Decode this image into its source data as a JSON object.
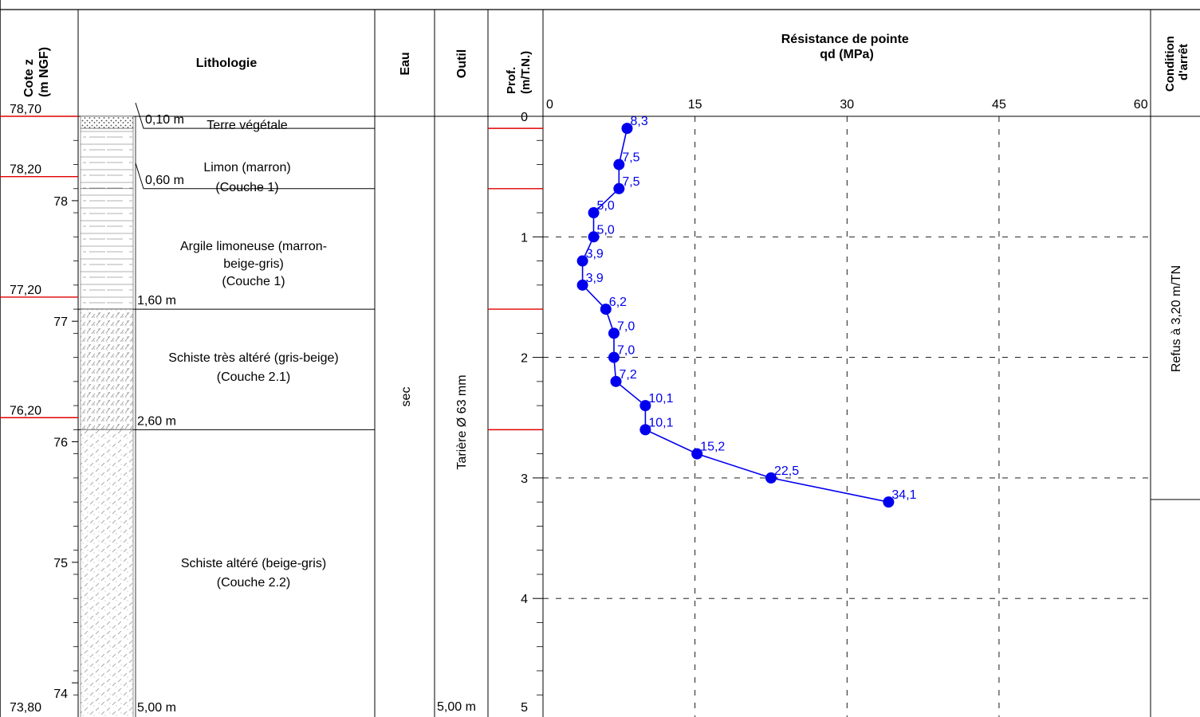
{
  "headers": {
    "cote_line1": "Cote z",
    "cote_line2": "(m NGF)",
    "lithologie": "Lithologie",
    "eau": "Eau",
    "outil": "Outil",
    "prof_line1": "Prof.",
    "prof_line2": "(m/T.N.)",
    "resistance_line1": "Résistance de pointe",
    "resistance_line2": "qd (MPa)",
    "condition_line1": "Condition",
    "condition_line2": "d'arrêt"
  },
  "elevation_labels": [
    "78,70",
    "78,20",
    "77,20",
    "76,20",
    "73,80"
  ],
  "elevation_ticks": [
    "78",
    "77",
    "76",
    "75",
    "74"
  ],
  "layers": [
    {
      "name": "Terre végétale",
      "desc": "",
      "bottom_label": "0,10 m",
      "pattern": "topsoil"
    },
    {
      "name": "Limon (marron)",
      "desc": "(Couche 1)",
      "bottom_label": "0,60 m",
      "pattern": "silt"
    },
    {
      "name": "Argile limoneuse (marron-",
      "name2": "beige-gris)",
      "desc": "(Couche 1)",
      "bottom_label": "1,60 m",
      "pattern": "silt"
    },
    {
      "name": "Schiste très altéré (gris-beige)",
      "desc": "(Couche 2.1)",
      "bottom_label": "2,60 m",
      "pattern": "schist_dense"
    },
    {
      "name": "Schiste altéré (beige-gris)",
      "desc": "(Couche 2.2)",
      "bottom_label": "5,00 m",
      "pattern": "schist"
    }
  ],
  "eau_value": "sec",
  "outil_value": "Tarière Ø 63 mm",
  "outil_end_label": "5,00 m",
  "depth_tick_labels": [
    "0",
    "1",
    "2",
    "3",
    "4",
    "5"
  ],
  "condition_text": "Refus à 3,20 m/TN",
  "colors": {
    "series": "#0000ee",
    "boundary": "#e00000",
    "grid": "#000000"
  },
  "chart_data": {
    "type": "line",
    "title": "Résistance de pointe",
    "xlabel": "qd (MPa)",
    "ylabel": "Prof. (m/T.N.)",
    "xlim": [
      0,
      60
    ],
    "ylim": [
      0,
      5
    ],
    "y_inverted": true,
    "x_ticks": [
      "0",
      "15",
      "30",
      "45",
      "60"
    ],
    "grid": true,
    "points": [
      {
        "depth": 0.1,
        "qd": 8.3,
        "label": "8,3"
      },
      {
        "depth": 0.4,
        "qd": 7.5,
        "label": "7,5"
      },
      {
        "depth": 0.6,
        "qd": 7.5,
        "label": "7,5"
      },
      {
        "depth": 0.8,
        "qd": 5.0,
        "label": "5,0"
      },
      {
        "depth": 1.0,
        "qd": 5.0,
        "label": "5,0"
      },
      {
        "depth": 1.2,
        "qd": 3.9,
        "label": "3,9"
      },
      {
        "depth": 1.4,
        "qd": 3.9,
        "label": "3,9"
      },
      {
        "depth": 1.6,
        "qd": 6.2,
        "label": "6,2"
      },
      {
        "depth": 1.8,
        "qd": 7.0,
        "label": "7,0"
      },
      {
        "depth": 2.0,
        "qd": 7.0,
        "label": "7,0"
      },
      {
        "depth": 2.2,
        "qd": 7.2,
        "label": "7,2"
      },
      {
        "depth": 2.4,
        "qd": 10.1,
        "label": "10,1"
      },
      {
        "depth": 2.6,
        "qd": 10.1,
        "label": "10,1"
      },
      {
        "depth": 2.8,
        "qd": 15.2,
        "label": "15,2"
      },
      {
        "depth": 3.0,
        "qd": 22.5,
        "label": "22,5"
      },
      {
        "depth": 3.2,
        "qd": 34.1,
        "label": "34,1"
      }
    ]
  }
}
